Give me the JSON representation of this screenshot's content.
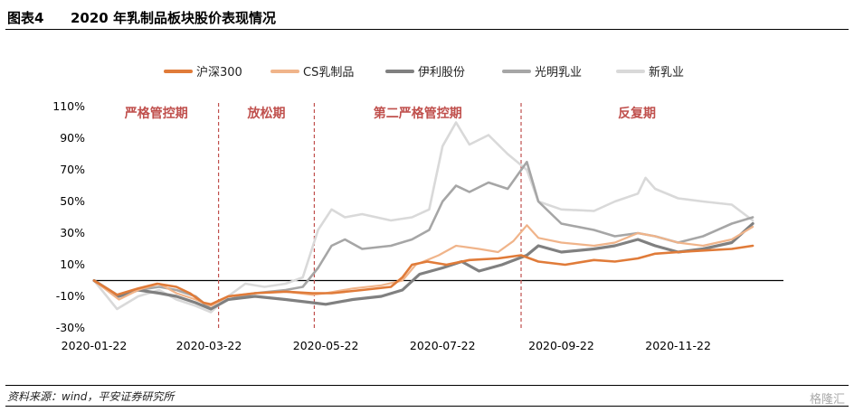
{
  "header": {
    "fig_num": "图表4",
    "title": "2020 年乳制品板块股价表现情况"
  },
  "footer": {
    "source": "资料来源：wind，平安证券研究所",
    "watermark": "格隆汇"
  },
  "chart_data": {
    "type": "line",
    "title": "",
    "xlabel": "",
    "ylabel": "",
    "ylim": [
      -30,
      110
    ],
    "yticks": [
      "110%",
      "90%",
      "70%",
      "50%",
      "30%",
      "10%",
      "-10%",
      "-30%"
    ],
    "x_range": [
      "2020-01-22",
      "2020-12-31"
    ],
    "xticks": [
      "2020-01-22",
      "2020-03-22",
      "2020-05-22",
      "2020-07-22",
      "2020-09-22",
      "2020-11-22"
    ],
    "legend_position": "top",
    "phases": [
      {
        "label": "严格管控期",
        "start": "2020-01-22",
        "end": "2020-03-27"
      },
      {
        "label": "放松期",
        "start": "2020-03-27",
        "end": "2020-05-16"
      },
      {
        "label": "第二严格管控期",
        "start": "2020-05-16",
        "end": "2020-09-01"
      },
      {
        "label": "反复期",
        "start": "2020-09-01",
        "end": "2020-12-31"
      }
    ],
    "series": [
      {
        "name": "沪深300",
        "color": "#e07b39",
        "width": 2.6,
        "points": [
          [
            "2020-01-22",
            0
          ],
          [
            "2020-02-03",
            -9
          ],
          [
            "2020-02-14",
            -5
          ],
          [
            "2020-02-24",
            -2
          ],
          [
            "2020-03-05",
            -4
          ],
          [
            "2020-03-12",
            -8
          ],
          [
            "2020-03-19",
            -14
          ],
          [
            "2020-03-23",
            -15
          ],
          [
            "2020-04-01",
            -10
          ],
          [
            "2020-04-15",
            -8
          ],
          [
            "2020-05-01",
            -7
          ],
          [
            "2020-05-15",
            -8
          ],
          [
            "2020-05-25",
            -8
          ],
          [
            "2020-06-10",
            -6
          ],
          [
            "2020-06-25",
            -4
          ],
          [
            "2020-07-01",
            2
          ],
          [
            "2020-07-06",
            10
          ],
          [
            "2020-07-14",
            12
          ],
          [
            "2020-07-24",
            10
          ],
          [
            "2020-08-05",
            13
          ],
          [
            "2020-08-20",
            14
          ],
          [
            "2020-09-01",
            16
          ],
          [
            "2020-09-10",
            12
          ],
          [
            "2020-09-24",
            10
          ],
          [
            "2020-10-09",
            13
          ],
          [
            "2020-10-20",
            12
          ],
          [
            "2020-11-01",
            14
          ],
          [
            "2020-11-10",
            17
          ],
          [
            "2020-11-22",
            18
          ],
          [
            "2020-12-05",
            19
          ],
          [
            "2020-12-20",
            20
          ],
          [
            "2020-12-31",
            22
          ]
        ]
      },
      {
        "name": "CS乳制品",
        "color": "#f0b48a",
        "width": 2.2,
        "points": [
          [
            "2020-01-22",
            0
          ],
          [
            "2020-02-04",
            -12
          ],
          [
            "2020-02-14",
            -6
          ],
          [
            "2020-02-25",
            -2
          ],
          [
            "2020-03-05",
            -8
          ],
          [
            "2020-03-15",
            -12
          ],
          [
            "2020-03-23",
            -16
          ],
          [
            "2020-04-01",
            -10
          ],
          [
            "2020-04-15",
            -8
          ],
          [
            "2020-05-01",
            -7
          ],
          [
            "2020-05-15",
            -9
          ],
          [
            "2020-05-22",
            -8
          ],
          [
            "2020-06-05",
            -5
          ],
          [
            "2020-06-20",
            -3
          ],
          [
            "2020-07-01",
            0
          ],
          [
            "2020-07-08",
            10
          ],
          [
            "2020-07-20",
            16
          ],
          [
            "2020-07-29",
            22
          ],
          [
            "2020-08-10",
            20
          ],
          [
            "2020-08-20",
            18
          ],
          [
            "2020-08-28",
            25
          ],
          [
            "2020-09-04",
            35
          ],
          [
            "2020-09-10",
            27
          ],
          [
            "2020-09-22",
            24
          ],
          [
            "2020-10-09",
            22
          ],
          [
            "2020-10-20",
            24
          ],
          [
            "2020-11-01",
            30
          ],
          [
            "2020-11-10",
            28
          ],
          [
            "2020-11-22",
            24
          ],
          [
            "2020-12-05",
            22
          ],
          [
            "2020-12-20",
            26
          ],
          [
            "2020-12-31",
            34
          ]
        ]
      },
      {
        "name": "伊利股份",
        "color": "#808080",
        "width": 3.2,
        "points": [
          [
            "2020-01-22",
            0
          ],
          [
            "2020-02-04",
            -10
          ],
          [
            "2020-02-14",
            -6
          ],
          [
            "2020-02-25",
            -8
          ],
          [
            "2020-03-05",
            -10
          ],
          [
            "2020-03-15",
            -14
          ],
          [
            "2020-03-23",
            -18
          ],
          [
            "2020-04-01",
            -12
          ],
          [
            "2020-04-15",
            -10
          ],
          [
            "2020-05-01",
            -12
          ],
          [
            "2020-05-15",
            -14
          ],
          [
            "2020-05-22",
            -15
          ],
          [
            "2020-06-05",
            -12
          ],
          [
            "2020-06-20",
            -10
          ],
          [
            "2020-07-01",
            -6
          ],
          [
            "2020-07-10",
            4
          ],
          [
            "2020-07-22",
            8
          ],
          [
            "2020-08-01",
            12
          ],
          [
            "2020-08-10",
            6
          ],
          [
            "2020-08-22",
            10
          ],
          [
            "2020-09-04",
            16
          ],
          [
            "2020-09-10",
            22
          ],
          [
            "2020-09-22",
            18
          ],
          [
            "2020-10-09",
            20
          ],
          [
            "2020-10-20",
            22
          ],
          [
            "2020-11-01",
            26
          ],
          [
            "2020-11-10",
            22
          ],
          [
            "2020-11-22",
            18
          ],
          [
            "2020-12-05",
            20
          ],
          [
            "2020-12-20",
            24
          ],
          [
            "2020-12-31",
            36
          ]
        ]
      },
      {
        "name": "光明乳业",
        "color": "#a6a6a6",
        "width": 2.6,
        "points": [
          [
            "2020-01-22",
            0
          ],
          [
            "2020-02-03",
            -10
          ],
          [
            "2020-02-14",
            -6
          ],
          [
            "2020-02-25",
            -4
          ],
          [
            "2020-03-05",
            -6
          ],
          [
            "2020-03-15",
            -10
          ],
          [
            "2020-03-23",
            -18
          ],
          [
            "2020-04-01",
            -12
          ],
          [
            "2020-04-15",
            -8
          ],
          [
            "2020-05-01",
            -6
          ],
          [
            "2020-05-10",
            -4
          ],
          [
            "2020-05-18",
            8
          ],
          [
            "2020-05-25",
            22
          ],
          [
            "2020-06-01",
            26
          ],
          [
            "2020-06-10",
            20
          ],
          [
            "2020-06-25",
            22
          ],
          [
            "2020-07-06",
            26
          ],
          [
            "2020-07-15",
            32
          ],
          [
            "2020-07-22",
            50
          ],
          [
            "2020-07-29",
            60
          ],
          [
            "2020-08-05",
            56
          ],
          [
            "2020-08-15",
            62
          ],
          [
            "2020-08-25",
            58
          ],
          [
            "2020-09-04",
            75
          ],
          [
            "2020-09-10",
            50
          ],
          [
            "2020-09-22",
            36
          ],
          [
            "2020-10-09",
            32
          ],
          [
            "2020-10-20",
            28
          ],
          [
            "2020-11-01",
            30
          ],
          [
            "2020-11-10",
            28
          ],
          [
            "2020-11-22",
            24
          ],
          [
            "2020-12-05",
            28
          ],
          [
            "2020-12-20",
            36
          ],
          [
            "2020-12-31",
            40
          ]
        ]
      },
      {
        "name": "新乳业",
        "color": "#d9d9d9",
        "width": 2.6,
        "points": [
          [
            "2020-01-22",
            0
          ],
          [
            "2020-02-03",
            -18
          ],
          [
            "2020-02-14",
            -10
          ],
          [
            "2020-02-25",
            -6
          ],
          [
            "2020-03-05",
            -12
          ],
          [
            "2020-03-15",
            -16
          ],
          [
            "2020-03-23",
            -20
          ],
          [
            "2020-04-01",
            -10
          ],
          [
            "2020-04-10",
            -2
          ],
          [
            "2020-04-20",
            -4
          ],
          [
            "2020-05-01",
            -2
          ],
          [
            "2020-05-10",
            2
          ],
          [
            "2020-05-18",
            32
          ],
          [
            "2020-05-25",
            45
          ],
          [
            "2020-06-01",
            40
          ],
          [
            "2020-06-10",
            42
          ],
          [
            "2020-06-25",
            38
          ],
          [
            "2020-07-06",
            40
          ],
          [
            "2020-07-15",
            45
          ],
          [
            "2020-07-22",
            85
          ],
          [
            "2020-07-29",
            100
          ],
          [
            "2020-08-05",
            86
          ],
          [
            "2020-08-15",
            92
          ],
          [
            "2020-08-25",
            80
          ],
          [
            "2020-09-04",
            70
          ],
          [
            "2020-09-10",
            50
          ],
          [
            "2020-09-22",
            45
          ],
          [
            "2020-10-09",
            44
          ],
          [
            "2020-10-20",
            50
          ],
          [
            "2020-11-01",
            55
          ],
          [
            "2020-11-05",
            65
          ],
          [
            "2020-11-10",
            58
          ],
          [
            "2020-11-22",
            52
          ],
          [
            "2020-12-05",
            50
          ],
          [
            "2020-12-20",
            48
          ],
          [
            "2020-12-31",
            38
          ]
        ]
      }
    ]
  }
}
